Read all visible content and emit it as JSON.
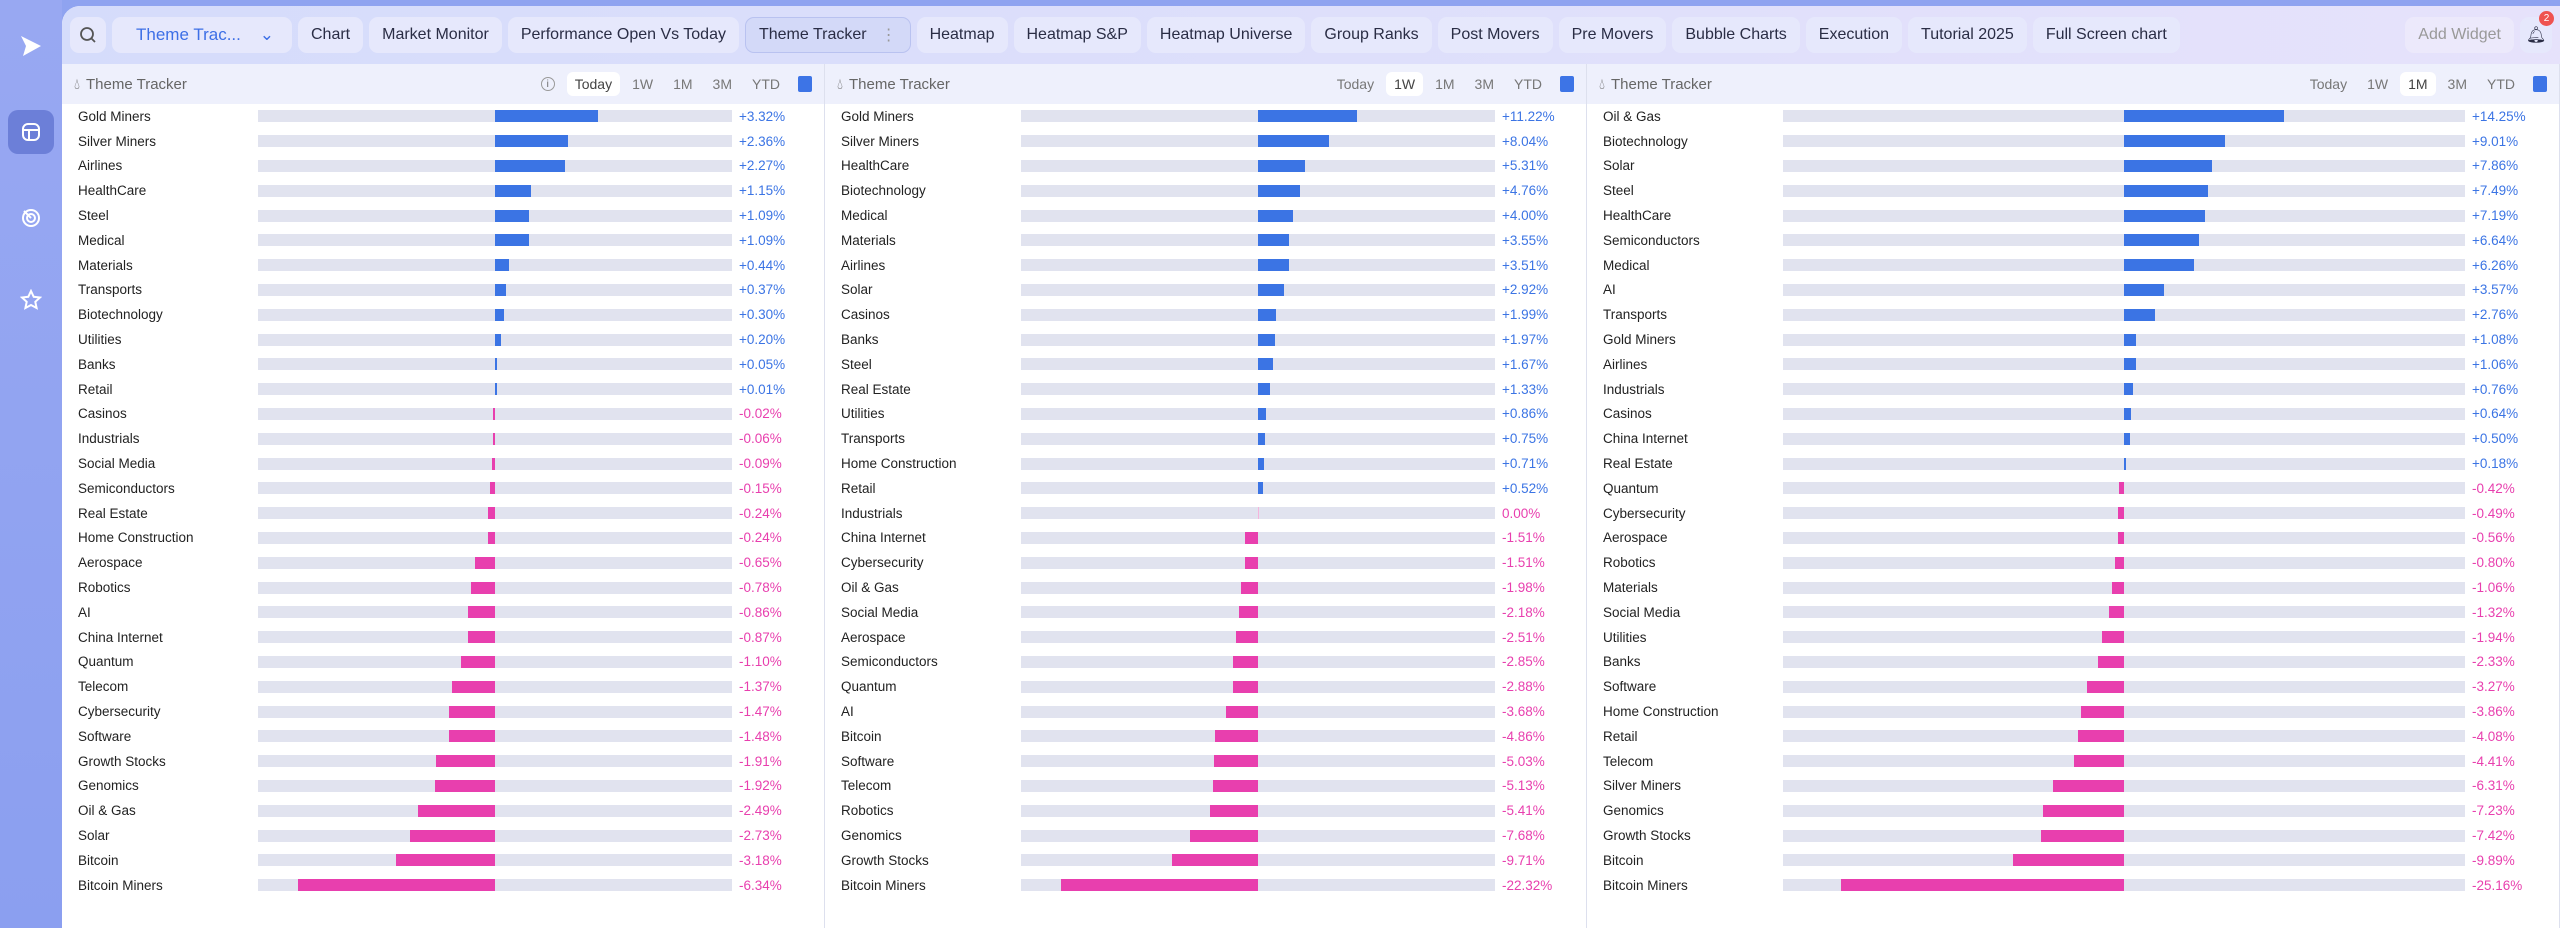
{
  "colors": {
    "positive": "#3b74e4",
    "negative": "#e83fae",
    "zero": "#f5b4dc"
  },
  "topbar": {
    "selector": "Theme Trac...",
    "tabs": [
      "Chart",
      "Market Monitor",
      "Performance Open Vs Today",
      "Theme Tracker",
      "Heatmap",
      "Heatmap S&P",
      "Heatmap Universe",
      "Group Ranks",
      "Post Movers",
      "Pre Movers",
      "Bubble Charts",
      "Execution",
      "Tutorial 2025",
      "Full Screen chart"
    ],
    "active_tab": 3,
    "add_widget": "Add Widget",
    "notifications": "2"
  },
  "panels": [
    {
      "title": "Theme Tracker",
      "ranges": [
        "Today",
        "1W",
        "1M",
        "3M",
        "YTD"
      ],
      "active_range": "Today",
      "rows": [
        [
          "Gold Miners",
          3.32
        ],
        [
          "Silver Miners",
          2.36
        ],
        [
          "Airlines",
          2.27
        ],
        [
          "HealthCare",
          1.15
        ],
        [
          "Steel",
          1.09
        ],
        [
          "Medical",
          1.09
        ],
        [
          "Materials",
          0.44
        ],
        [
          "Transports",
          0.37
        ],
        [
          "Biotechnology",
          0.3
        ],
        [
          "Utilities",
          0.2
        ],
        [
          "Banks",
          0.05
        ],
        [
          "Retail",
          0.01
        ],
        [
          "Casinos",
          -0.02
        ],
        [
          "Industrials",
          -0.06
        ],
        [
          "Social Media",
          -0.09
        ],
        [
          "Semiconductors",
          -0.15
        ],
        [
          "Real Estate",
          -0.24
        ],
        [
          "Home Construction",
          -0.24
        ],
        [
          "Aerospace",
          -0.65
        ],
        [
          "Robotics",
          -0.78
        ],
        [
          "AI",
          -0.86
        ],
        [
          "China Internet",
          -0.87
        ],
        [
          "Quantum",
          -1.1
        ],
        [
          "Telecom",
          -1.37
        ],
        [
          "Cybersecurity",
          -1.47
        ],
        [
          "Software",
          -1.48
        ],
        [
          "Growth Stocks",
          -1.91
        ],
        [
          "Genomics",
          -1.92
        ],
        [
          "Oil & Gas",
          -2.49
        ],
        [
          "Solar",
          -2.73
        ],
        [
          "Bitcoin",
          -3.18
        ],
        [
          "Bitcoin Miners",
          -6.34
        ]
      ]
    },
    {
      "title": "Theme Tracker",
      "ranges": [
        "Today",
        "1W",
        "1M",
        "3M",
        "YTD"
      ],
      "active_range": "1W",
      "rows": [
        [
          "Gold Miners",
          11.22
        ],
        [
          "Silver Miners",
          8.04
        ],
        [
          "HealthCare",
          5.31
        ],
        [
          "Biotechnology",
          4.76
        ],
        [
          "Medical",
          4.0
        ],
        [
          "Materials",
          3.55
        ],
        [
          "Airlines",
          3.51
        ],
        [
          "Solar",
          2.92
        ],
        [
          "Casinos",
          1.99
        ],
        [
          "Banks",
          1.97
        ],
        [
          "Steel",
          1.67
        ],
        [
          "Real Estate",
          1.33
        ],
        [
          "Utilities",
          0.86
        ],
        [
          "Transports",
          0.75
        ],
        [
          "Home Construction",
          0.71
        ],
        [
          "Retail",
          0.52
        ],
        [
          "Industrials",
          0.0
        ],
        [
          "China Internet",
          -1.51
        ],
        [
          "Cybersecurity",
          -1.51
        ],
        [
          "Oil & Gas",
          -1.98
        ],
        [
          "Social Media",
          -2.18
        ],
        [
          "Aerospace",
          -2.51
        ],
        [
          "Semiconductors",
          -2.85
        ],
        [
          "Quantum",
          -2.88
        ],
        [
          "AI",
          -3.68
        ],
        [
          "Bitcoin",
          -4.86
        ],
        [
          "Software",
          -5.03
        ],
        [
          "Telecom",
          -5.13
        ],
        [
          "Robotics",
          -5.41
        ],
        [
          "Genomics",
          -7.68
        ],
        [
          "Growth Stocks",
          -9.71
        ],
        [
          "Bitcoin Miners",
          -22.32
        ]
      ]
    },
    {
      "title": "Theme Tracker",
      "ranges": [
        "Today",
        "1W",
        "1M",
        "3M",
        "YTD"
      ],
      "active_range": "1M",
      "rows": [
        [
          "Oil & Gas",
          14.25
        ],
        [
          "Biotechnology",
          9.01
        ],
        [
          "Solar",
          7.86
        ],
        [
          "Steel",
          7.49
        ],
        [
          "HealthCare",
          7.19
        ],
        [
          "Semiconductors",
          6.64
        ],
        [
          "Medical",
          6.26
        ],
        [
          "AI",
          3.57
        ],
        [
          "Transports",
          2.76
        ],
        [
          "Gold Miners",
          1.08
        ],
        [
          "Airlines",
          1.06
        ],
        [
          "Industrials",
          0.76
        ],
        [
          "Casinos",
          0.64
        ],
        [
          "China Internet",
          0.5
        ],
        [
          "Real Estate",
          0.18
        ],
        [
          "Quantum",
          -0.42
        ],
        [
          "Cybersecurity",
          -0.49
        ],
        [
          "Aerospace",
          -0.56
        ],
        [
          "Robotics",
          -0.8
        ],
        [
          "Materials",
          -1.06
        ],
        [
          "Social Media",
          -1.32
        ],
        [
          "Utilities",
          -1.94
        ],
        [
          "Banks",
          -2.33
        ],
        [
          "Software",
          -3.27
        ],
        [
          "Home Construction",
          -3.86
        ],
        [
          "Retail",
          -4.08
        ],
        [
          "Telecom",
          -4.41
        ],
        [
          "Silver Miners",
          -6.31
        ],
        [
          "Genomics",
          -7.23
        ],
        [
          "Growth Stocks",
          -7.42
        ],
        [
          "Bitcoin",
          -9.89
        ],
        [
          "Bitcoin Miners",
          -25.16
        ]
      ]
    }
  ]
}
